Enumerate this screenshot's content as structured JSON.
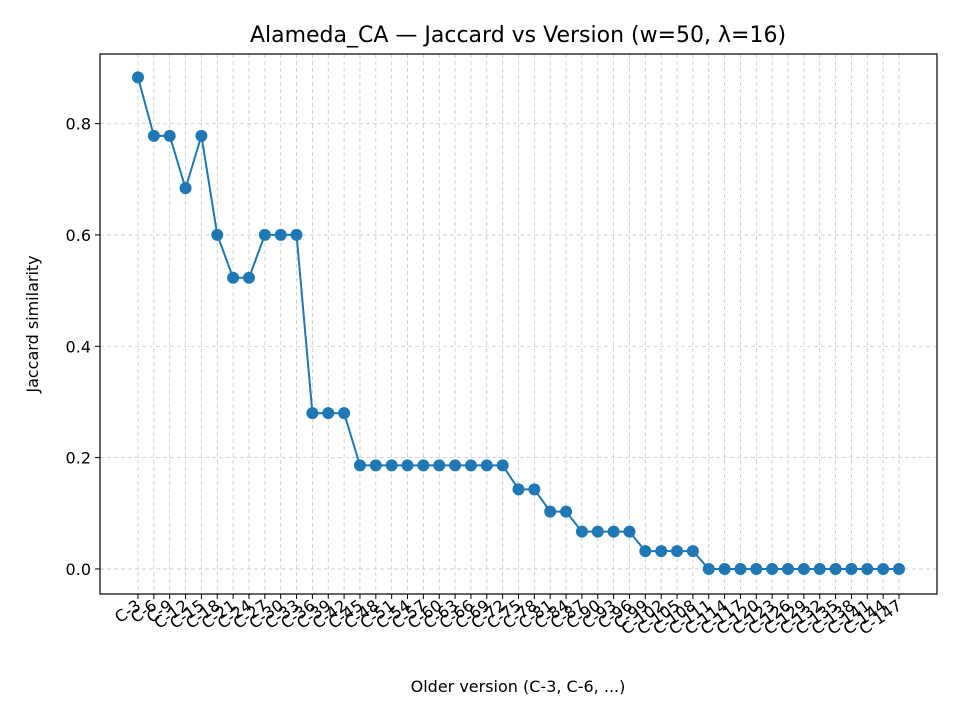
{
  "chart_data": {
    "type": "line",
    "title": "Alameda_CA — Jaccard vs Version (w=50, λ=16)",
    "xlabel": "Older version (C-3, C-6, ...)",
    "ylabel": "Jaccard similarity",
    "ylim": [
      -0.045,
      0.925
    ],
    "yticks": [
      0.0,
      0.2,
      0.4,
      0.6,
      0.8
    ],
    "ytick_labels": [
      "0.0",
      "0.2",
      "0.4",
      "0.6",
      "0.8"
    ],
    "grid": true,
    "color": "#1f77b4",
    "categories": [
      "C-3",
      "C-6",
      "C-9",
      "C-12",
      "C-15",
      "C-18",
      "C-21",
      "C-24",
      "C-27",
      "C-30",
      "C-33",
      "C-36",
      "C-39",
      "C-42",
      "C-45",
      "C-48",
      "C-51",
      "C-54",
      "C-57",
      "C-60",
      "C-63",
      "C-66",
      "C-69",
      "C-72",
      "C-75",
      "C-78",
      "C-81",
      "C-84",
      "C-87",
      "C-90",
      "C-93",
      "C-96",
      "C-99",
      "C-102",
      "C-105",
      "C-108",
      "C-111",
      "C-114",
      "C-117",
      "C-120",
      "C-123",
      "C-126",
      "C-129",
      "C-132",
      "C-135",
      "C-138",
      "C-141",
      "C-144",
      "C-147"
    ],
    "series": [
      {
        "values": [
          0.883,
          0.778,
          0.778,
          0.684,
          0.778,
          0.6,
          0.523,
          0.523,
          0.6,
          0.6,
          0.6,
          0.28,
          0.28,
          0.28,
          0.186,
          0.186,
          0.186,
          0.186,
          0.186,
          0.186,
          0.186,
          0.186,
          0.186,
          0.186,
          0.143,
          0.143,
          0.103,
          0.103,
          0.067,
          0.067,
          0.067,
          0.067,
          0.032,
          0.032,
          0.032,
          0.032,
          0.0,
          0.0,
          0.0,
          0.0,
          0.0,
          0.0,
          0.0,
          0.0,
          0.0,
          0.0,
          0.0,
          0.0,
          0.0
        ]
      }
    ]
  }
}
